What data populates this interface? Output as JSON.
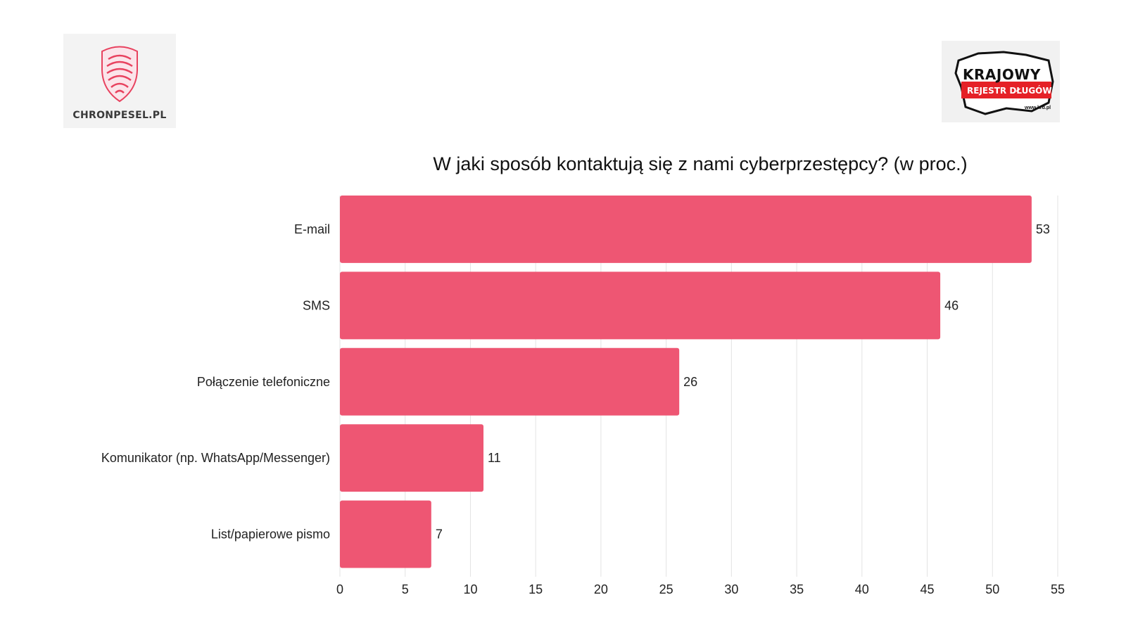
{
  "logos": {
    "left_text": "CHRONPESEL.PL",
    "right_line1": "KRAJOWY",
    "right_line2": "REJESTR DŁUGÓW",
    "right_line3": "www.krd.pl"
  },
  "chart_data": {
    "type": "bar",
    "orientation": "horizontal",
    "title": "W jaki sposób kontaktują się z nami cyberprzestępcy? (w proc.)",
    "categories": [
      "E-mail",
      "SMS",
      "Połączenie telefoniczne",
      "Komunikator (np. WhatsApp/Messenger)",
      "List/papierowe pismo"
    ],
    "values": [
      53,
      46,
      26,
      11,
      7
    ],
    "xlim": [
      0,
      55
    ],
    "xticks": [
      0,
      5,
      10,
      15,
      20,
      25,
      30,
      35,
      40,
      45,
      50,
      55
    ],
    "grid": true,
    "bar_color": "#ee5673",
    "grid_color": "#e3e3e3"
  }
}
